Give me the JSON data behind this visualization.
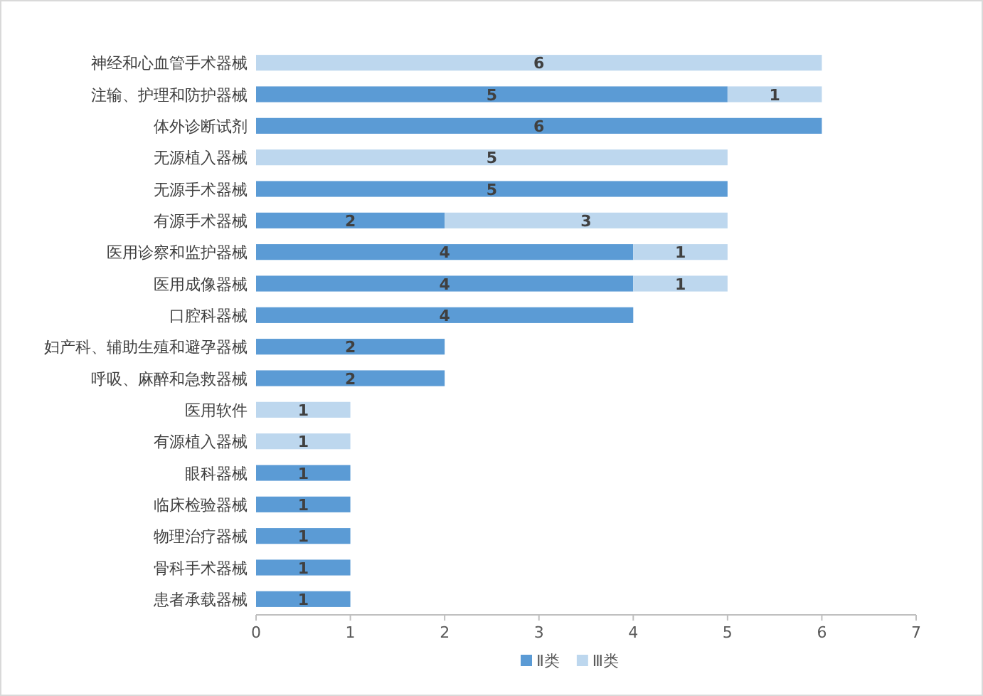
{
  "chart_data": {
    "type": "bar",
    "orientation": "horizontal",
    "stacked": true,
    "data_labels": true,
    "legend": "bottom",
    "grid": false,
    "categories": [
      "神经和心血管手术器械",
      "注输、护理和防护器械",
      "体外诊断试剂",
      "无源植入器械",
      "无源手术器械",
      "有源手术器械",
      "医用诊察和监护器械",
      "医用成像器械",
      "口腔科器械",
      "妇产科、辅助生殖和避孕器械",
      "呼吸、麻醉和急救器械",
      "医用软件",
      "有源植入器械",
      "眼科器械",
      "临床检验器械",
      "物理治疗器械",
      "骨科手术器械",
      "患者承载器械"
    ],
    "series": [
      {
        "name": "Ⅱ类",
        "color": "#5b9bd5",
        "values": [
          null,
          5,
          6,
          null,
          5,
          2,
          4,
          4,
          4,
          2,
          2,
          null,
          null,
          1,
          1,
          1,
          1,
          1
        ]
      },
      {
        "name": "Ⅲ类",
        "color": "#bdd7ee",
        "values": [
          6,
          1,
          null,
          5,
          null,
          3,
          1,
          1,
          null,
          null,
          null,
          1,
          1,
          null,
          null,
          null,
          null,
          null
        ]
      }
    ],
    "xlim": [
      0,
      7
    ],
    "xticks": [
      0,
      1,
      2,
      3,
      4,
      5,
      6,
      7
    ]
  }
}
